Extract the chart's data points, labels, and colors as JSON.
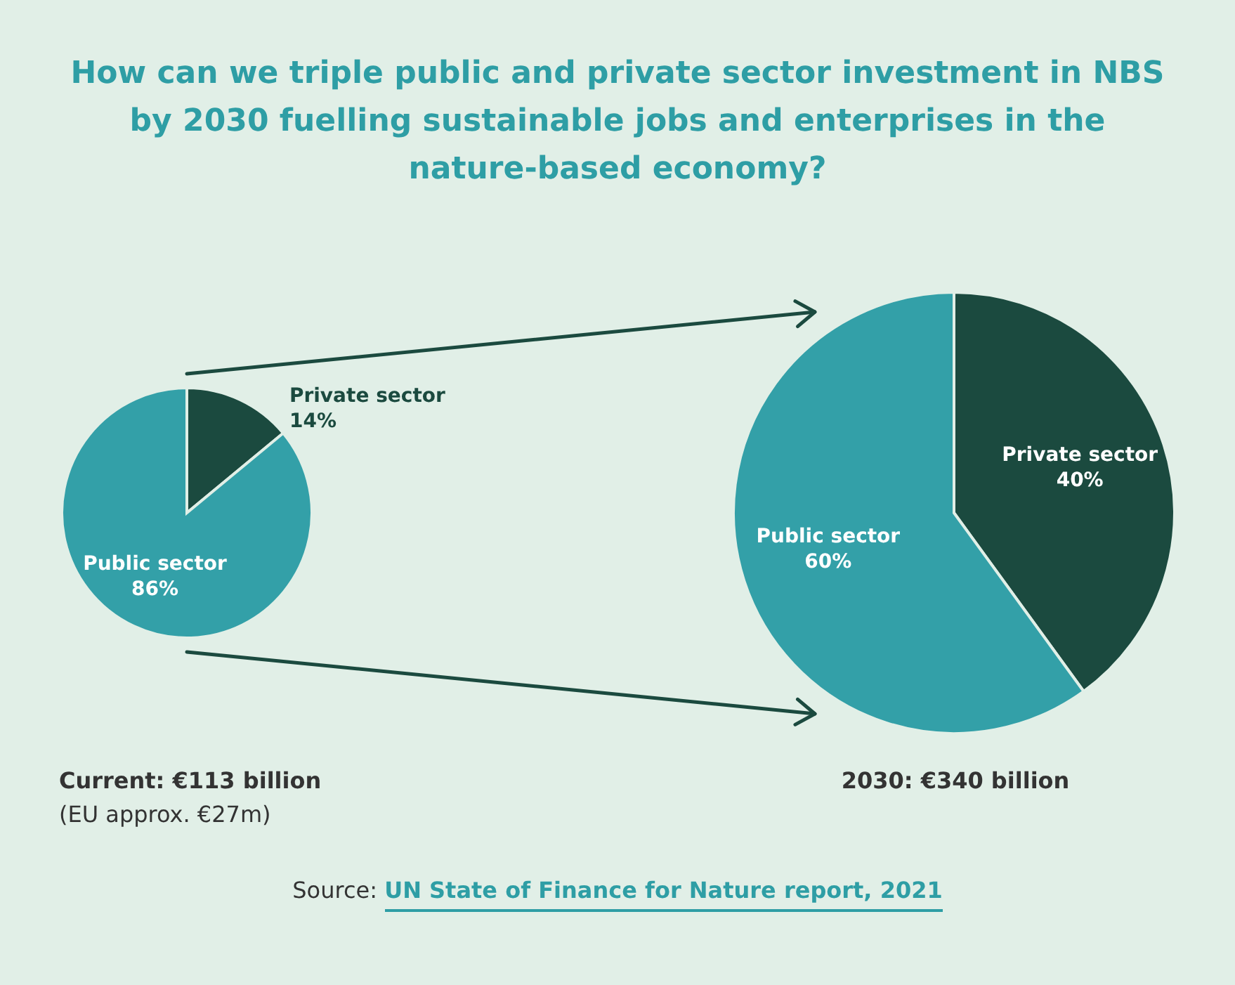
{
  "chart_data": [
    {
      "type": "pie",
      "title": "How can we triple public and private sector investment in NBS by 2030 fuelling sustainable jobs and enterprises in the nature-based economy?",
      "categories": [
        "Private sector",
        "Public sector"
      ],
      "values": [
        14,
        86
      ],
      "value_labels": [
        "14%",
        "86%"
      ],
      "colors": [
        "#1b4a3f",
        "#33a0a8"
      ],
      "annotations": [
        "Current: €113 billion",
        "(EU approx. €27m)"
      ]
    },
    {
      "type": "pie",
      "categories": [
        "Private sector",
        "Public sector"
      ],
      "values": [
        40,
        60
      ],
      "value_labels": [
        "40%",
        "60%"
      ],
      "colors": [
        "#1b4a3f",
        "#33a0a8"
      ],
      "annotations": [
        "2030: €340 billion",
        "Source: UN State of Finance for Nature report, 2021"
      ]
    }
  ]
}
